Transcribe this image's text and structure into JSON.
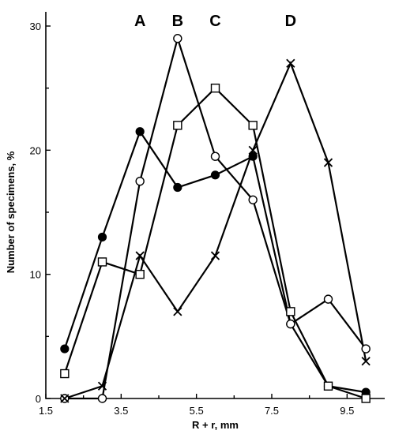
{
  "chart_data": {
    "type": "line",
    "xlabel": "R + r, mm",
    "ylabel": "Number of specimens, %",
    "xlim": [
      1.5,
      10.5
    ],
    "ylim": [
      0,
      30
    ],
    "xticks": [
      1.5,
      3.5,
      5.5,
      7.5,
      9.5
    ],
    "xtick_labels": [
      "1.5",
      "3.5",
      "5.5",
      "7.5",
      "9.5"
    ],
    "yticks": [
      0,
      10,
      20,
      30
    ],
    "ytick_labels": [
      "0",
      "10",
      "20",
      "30"
    ],
    "grid": false,
    "legend": null,
    "annotations": [
      {
        "text": "A",
        "x": 4.0
      },
      {
        "text": "B",
        "x": 5.0
      },
      {
        "text": "C",
        "x": 6.0
      },
      {
        "text": "D",
        "x": 8.0
      }
    ],
    "series": [
      {
        "marker": "filled-circle",
        "x": [
          2,
          3,
          4,
          5,
          6,
          7,
          8,
          9,
          10
        ],
        "y": [
          4,
          13,
          21.5,
          17,
          18,
          19.5,
          6,
          1,
          0.5
        ]
      },
      {
        "marker": "open-circle",
        "x": [
          2,
          3,
          4,
          5,
          6,
          7,
          8,
          9,
          10
        ],
        "y": [
          0,
          0,
          17.5,
          29,
          19.5,
          16,
          6,
          8,
          4
        ]
      },
      {
        "marker": "open-square",
        "x": [
          2,
          3,
          4,
          5,
          6,
          7,
          8,
          9,
          10
        ],
        "y": [
          2,
          11,
          10,
          22,
          25,
          22,
          7,
          1,
          0
        ]
      },
      {
        "marker": "cross",
        "x": [
          2,
          3,
          4,
          5,
          6,
          7,
          8,
          9,
          10
        ],
        "y": [
          0,
          1,
          11.5,
          7,
          11.5,
          20,
          27,
          19,
          3
        ]
      }
    ]
  }
}
